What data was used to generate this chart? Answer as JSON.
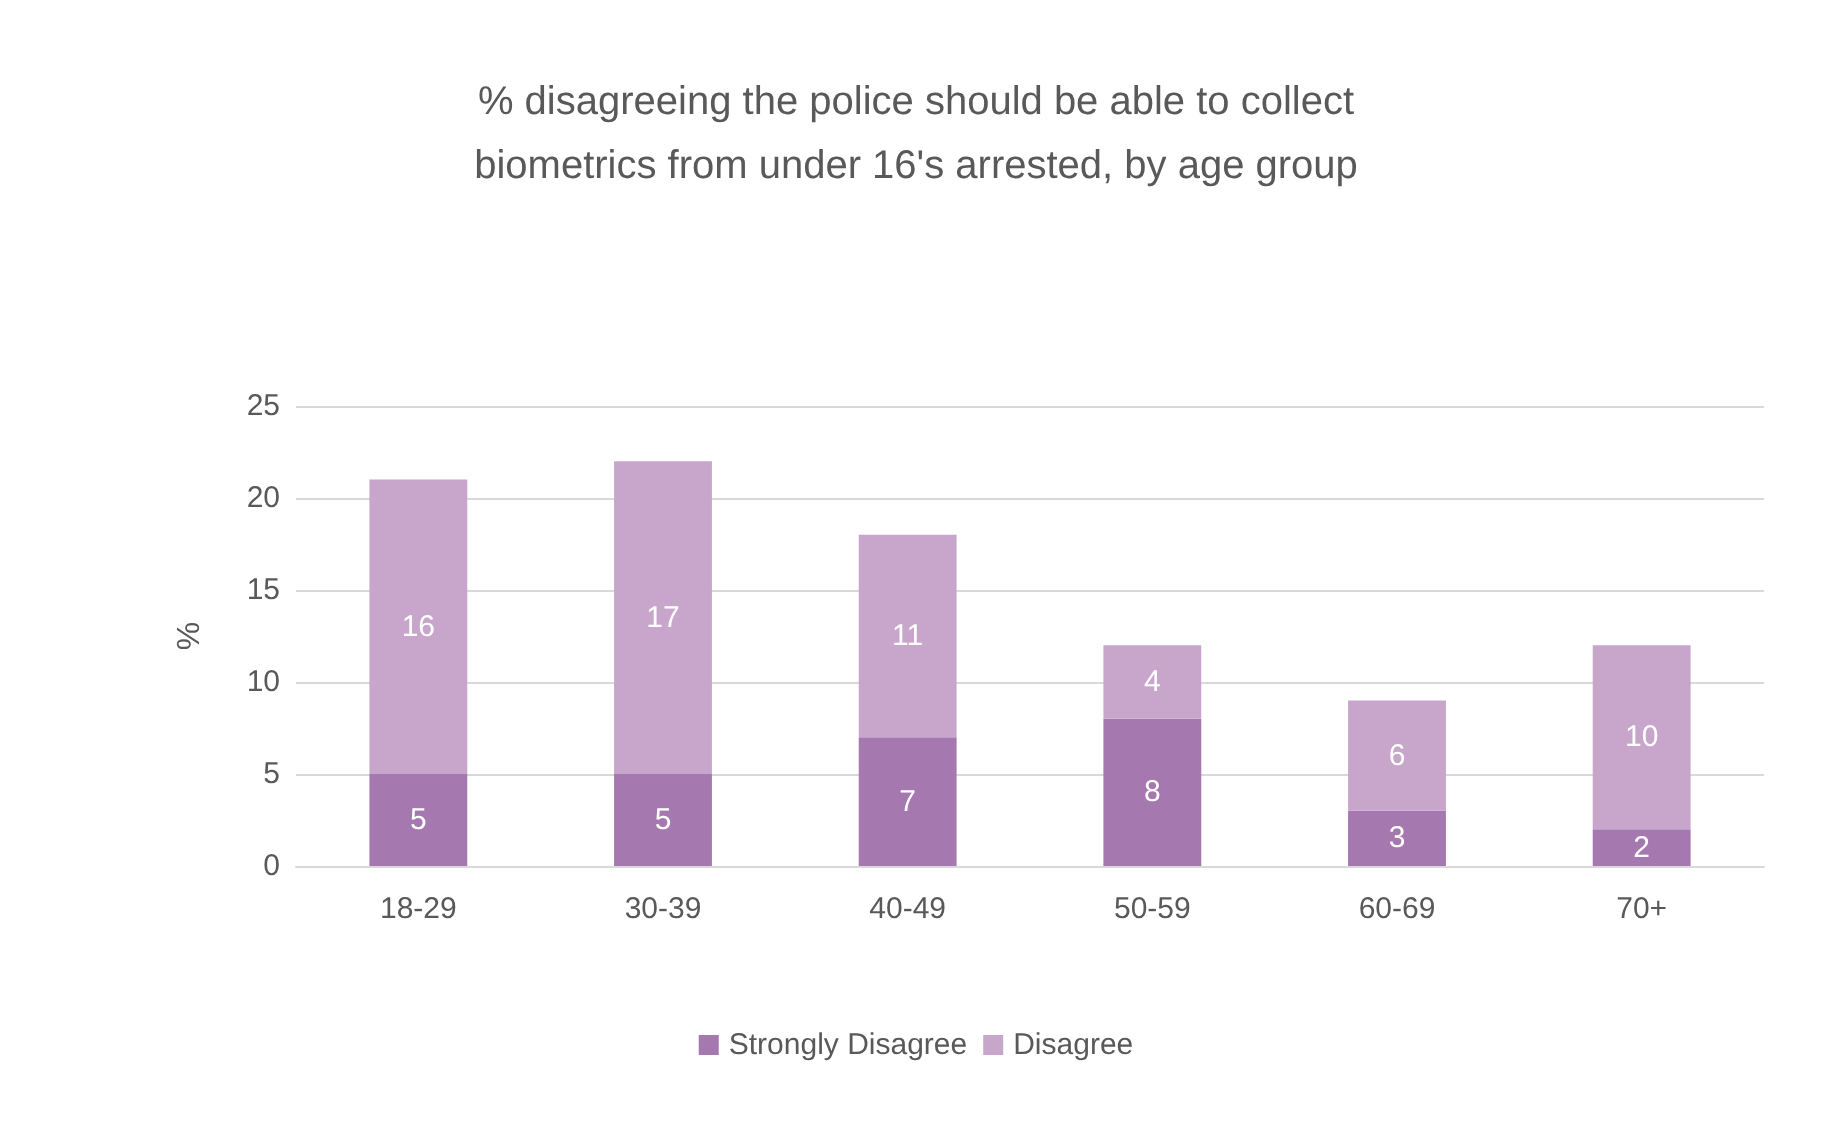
{
  "chart_data": {
    "type": "bar",
    "title": "% disagreeing the police should be able to collect\nbiometrics from under 16's arrested, by age group",
    "ylabel": "%",
    "categories": [
      "18-29",
      "30-39",
      "40-49",
      "50-59",
      "60-69",
      "70+"
    ],
    "series": [
      {
        "name": "Strongly Disagree",
        "color": "#a678b0",
        "values": [
          5,
          5,
          7,
          8,
          3,
          2
        ]
      },
      {
        "name": "Disagree",
        "color": "#c8a6cc",
        "values": [
          16,
          17,
          11,
          4,
          6,
          10
        ]
      }
    ],
    "stacked": true,
    "data_labels": true,
    "ylim": [
      0,
      25
    ],
    "yticks": [
      0,
      5,
      10,
      15,
      20,
      25
    ],
    "grid": "y",
    "legend": "bottom"
  }
}
